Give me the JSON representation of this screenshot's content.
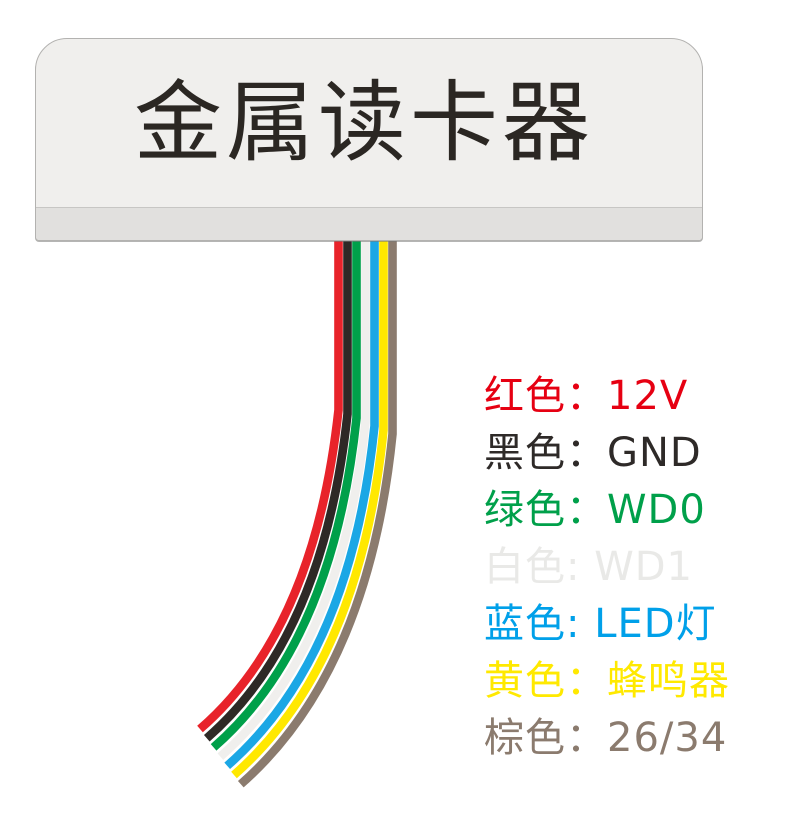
{
  "device": {
    "title": "金属读卡器"
  },
  "legend": {
    "items": [
      {
        "id": "red",
        "label": "红色：12V",
        "color": "#e60012"
      },
      {
        "id": "black",
        "label": "黑色：GND",
        "color": "#2e2a28"
      },
      {
        "id": "green",
        "label": "绿色：WD0",
        "color": "#00a04a"
      },
      {
        "id": "white",
        "label": "白色: WD1",
        "color": "#e9e9e7"
      },
      {
        "id": "blue",
        "label": "蓝色: LED灯",
        "color": "#00a0e9"
      },
      {
        "id": "yellow",
        "label": "黄色：蜂鸣器",
        "color": "#ffe900"
      },
      {
        "id": "brown",
        "label": "棕色：26/34",
        "color": "#8b7b6e"
      }
    ]
  },
  "wires": {
    "colors": [
      {
        "name": "red-wire",
        "hex": "#e8232a"
      },
      {
        "name": "black-wire",
        "hex": "#2e2926"
      },
      {
        "name": "green-wire",
        "hex": "#00a04a"
      },
      {
        "name": "white-wire",
        "hex": "#f0efed"
      },
      {
        "name": "blue-wire",
        "hex": "#1ba7e5"
      },
      {
        "name": "yellow-wire",
        "hex": "#ffe800"
      },
      {
        "name": "brown-wire",
        "hex": "#8b7b6e"
      }
    ]
  }
}
